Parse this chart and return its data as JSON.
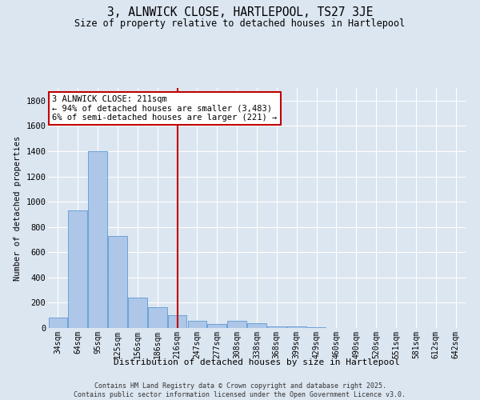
{
  "title_line1": "3, ALNWICK CLOSE, HARTLEPOOL, TS27 3JE",
  "title_line2": "Size of property relative to detached houses in Hartlepool",
  "xlabel": "Distribution of detached houses by size in Hartlepool",
  "ylabel": "Number of detached properties",
  "categories": [
    "34sqm",
    "64sqm",
    "95sqm",
    "125sqm",
    "156sqm",
    "186sqm",
    "216sqm",
    "247sqm",
    "277sqm",
    "308sqm",
    "338sqm",
    "368sqm",
    "399sqm",
    "429sqm",
    "460sqm",
    "490sqm",
    "520sqm",
    "551sqm",
    "581sqm",
    "612sqm",
    "642sqm"
  ],
  "values": [
    80,
    930,
    1400,
    730,
    240,
    165,
    100,
    55,
    30,
    55,
    35,
    15,
    10,
    5,
    0,
    3,
    0,
    0,
    0,
    0,
    0
  ],
  "bar_color": "#aec6e8",
  "bar_edge_color": "#5b9bd5",
  "background_color": "#dce6f1",
  "grid_color": "#ffffff",
  "vline_x_index": 6,
  "vline_color": "#c00000",
  "annotation_text": "3 ALNWICK CLOSE: 211sqm\n← 94% of detached houses are smaller (3,483)\n6% of semi-detached houses are larger (221) →",
  "annotation_box_color": "#c00000",
  "footer_line1": "Contains HM Land Registry data © Crown copyright and database right 2025.",
  "footer_line2": "Contains public sector information licensed under the Open Government Licence v3.0.",
  "ylim": [
    0,
    1900
  ],
  "yticks": [
    0,
    200,
    400,
    600,
    800,
    1000,
    1200,
    1400,
    1600,
    1800
  ]
}
